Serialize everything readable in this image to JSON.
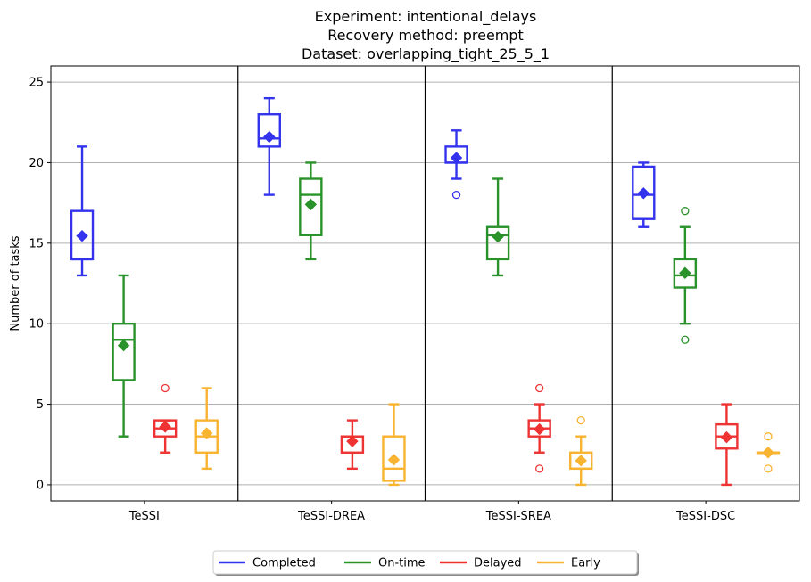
{
  "chart_data": {
    "type": "box",
    "title": [
      "Experiment: intentional_delays",
      "Recovery method: preempt",
      "Dataset: overlapping_tight_25_5_1"
    ],
    "xlabel": "",
    "ylabel": "Number of tasks",
    "ylim": [
      -1,
      26
    ],
    "yticks": [
      0,
      5,
      10,
      15,
      20,
      25
    ],
    "grid": "horizontal",
    "groups": [
      "TeSSI",
      "TeSSI-DREA",
      "TeSSI-SREA",
      "TeSSI-DSC"
    ],
    "legend": {
      "placement": "bottom-center",
      "columns": 4
    },
    "series": [
      {
        "name": "Completed",
        "color": "#3333ee",
        "boxes": [
          {
            "min": 13,
            "q1": 14,
            "median": 14,
            "q3": 17,
            "max": 21,
            "mean": 15.45,
            "outliers": []
          },
          {
            "min": 18,
            "q1": 21,
            "median": 21.5,
            "q3": 23,
            "max": 24,
            "mean": 21.6,
            "outliers": []
          },
          {
            "min": 19,
            "q1": 20,
            "median": 20,
            "q3": 21,
            "max": 22,
            "mean": 20.3,
            "outliers": [
              18
            ]
          },
          {
            "min": 16,
            "q1": 16.5,
            "median": 18,
            "q3": 19.75,
            "max": 20,
            "mean": 18.1,
            "outliers": []
          }
        ]
      },
      {
        "name": "On-time",
        "color": "#2a922a",
        "boxes": [
          {
            "min": 3,
            "q1": 6.5,
            "median": 9,
            "q3": 10,
            "max": 13,
            "mean": 8.65,
            "outliers": []
          },
          {
            "min": 14,
            "q1": 15.5,
            "median": 18,
            "q3": 19,
            "max": 20,
            "mean": 17.4,
            "outliers": []
          },
          {
            "min": 13,
            "q1": 14,
            "median": 15.5,
            "q3": 16,
            "max": 19,
            "mean": 15.4,
            "outliers": []
          },
          {
            "min": 10,
            "q1": 12.25,
            "median": 13,
            "q3": 14,
            "max": 16,
            "mean": 13.15,
            "outliers": [
              17,
              9
            ]
          }
        ]
      },
      {
        "name": "Delayed",
        "color": "#ee3333",
        "boxes": [
          {
            "min": 2,
            "q1": 3,
            "median": 3.5,
            "q3": 4,
            "max": 4,
            "mean": 3.6,
            "outliers": [
              6
            ]
          },
          {
            "min": 1,
            "q1": 2,
            "median": 3,
            "q3": 3,
            "max": 4,
            "mean": 2.7,
            "outliers": []
          },
          {
            "min": 2,
            "q1": 3,
            "median": 3.5,
            "q3": 4,
            "max": 5,
            "mean": 3.45,
            "outliers": [
              6,
              1
            ]
          },
          {
            "min": 0,
            "q1": 2.25,
            "median": 3,
            "q3": 3.75,
            "max": 5,
            "mean": 2.95,
            "outliers": []
          }
        ]
      },
      {
        "name": "Early",
        "color": "#f8b331",
        "boxes": [
          {
            "min": 1,
            "q1": 2,
            "median": 3,
            "q3": 4,
            "max": 6,
            "mean": 3.2,
            "outliers": []
          },
          {
            "min": 0,
            "q1": 0.25,
            "median": 1,
            "q3": 3,
            "max": 5,
            "mean": 1.55,
            "outliers": []
          },
          {
            "min": 0,
            "q1": 1,
            "median": 1,
            "q3": 2,
            "max": 3,
            "mean": 1.5,
            "outliers": [
              4
            ]
          },
          {
            "min": 2,
            "q1": 2,
            "median": 2,
            "q3": 2,
            "max": 2,
            "mean": 2,
            "outliers": [
              3,
              1
            ]
          }
        ]
      }
    ]
  }
}
